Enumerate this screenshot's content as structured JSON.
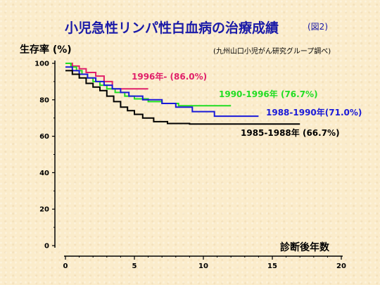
{
  "chart_data": {
    "type": "line",
    "title": "小児急性リンパ性白血病の治療成績",
    "title_suffix": "(図2)",
    "subtitle": "(九州山口小児がん研究グループ調べ)",
    "ylabel": "生存率 (%)",
    "xlabel": "診断後年数",
    "xlim": [
      0,
      20
    ],
    "ylim": [
      0,
      100
    ],
    "x_ticks": [
      0,
      5,
      10,
      15,
      20
    ],
    "y_ticks": [
      0,
      20,
      40,
      60,
      80,
      100
    ],
    "grid": false,
    "series": [
      {
        "name": "1996年- (86.0%)",
        "color": "#e0206a",
        "x": [
          0,
          0.5,
          0.5,
          1.0,
          1.0,
          1.5,
          1.5,
          2.2,
          2.2,
          2.8,
          2.8,
          3.4,
          3.4,
          6.0
        ],
        "y": [
          100,
          100,
          98.5,
          98.5,
          97,
          97,
          95,
          95,
          93,
          93,
          90,
          90,
          86,
          86
        ]
      },
      {
        "name": "1990-1996年 (76.7%)",
        "color": "#22dd22",
        "x": [
          0,
          0.4,
          0.4,
          0.8,
          0.8,
          1.2,
          1.2,
          1.6,
          1.6,
          2.0,
          2.0,
          2.5,
          2.5,
          3.0,
          3.0,
          3.6,
          3.6,
          4.3,
          4.3,
          5.0,
          5.0,
          6.0,
          6.0,
          7.0,
          7.0,
          8.2,
          8.2,
          12.0
        ],
        "y": [
          100,
          100,
          98,
          98,
          96,
          96,
          94,
          94,
          92,
          92,
          90,
          90,
          88,
          88,
          86,
          86,
          84,
          84,
          82,
          82,
          80.5,
          80.5,
          79,
          79,
          78,
          78,
          76.7,
          76.7
        ]
      },
      {
        "name": "1988-1990年(71.0%)",
        "color": "#1a1ad8",
        "x": [
          0,
          0.5,
          0.5,
          1.0,
          1.0,
          1.6,
          1.6,
          2.2,
          2.2,
          2.8,
          2.8,
          3.4,
          3.4,
          4.0,
          4.0,
          4.6,
          4.6,
          5.6,
          5.6,
          7.0,
          7.0,
          8.0,
          8.0,
          9.2,
          9.2,
          10.8,
          10.8,
          14.0
        ],
        "y": [
          98,
          98,
          96,
          96,
          94,
          94,
          92,
          92,
          90,
          90,
          88,
          88,
          86,
          86,
          84,
          84,
          82,
          82,
          80,
          80,
          78,
          78,
          76,
          76,
          73.5,
          73.5,
          71,
          71
        ]
      },
      {
        "name": "1985-1988年 (66.7%)",
        "color": "#000000",
        "x": [
          0,
          0.5,
          0.5,
          1.0,
          1.0,
          1.5,
          1.5,
          2.0,
          2.0,
          2.5,
          2.5,
          3.0,
          3.0,
          3.5,
          3.5,
          4.0,
          4.0,
          4.5,
          4.5,
          5.0,
          5.0,
          5.6,
          5.6,
          6.4,
          6.4,
          7.4,
          7.4,
          9.0,
          9.0,
          17.0
        ],
        "y": [
          96,
          96,
          94,
          94,
          92,
          92,
          89,
          89,
          87,
          87,
          85,
          85,
          82,
          82,
          79,
          79,
          76,
          76,
          74,
          74,
          72,
          72,
          70,
          70,
          68,
          68,
          67,
          67,
          66.7,
          66.7
        ]
      }
    ]
  }
}
